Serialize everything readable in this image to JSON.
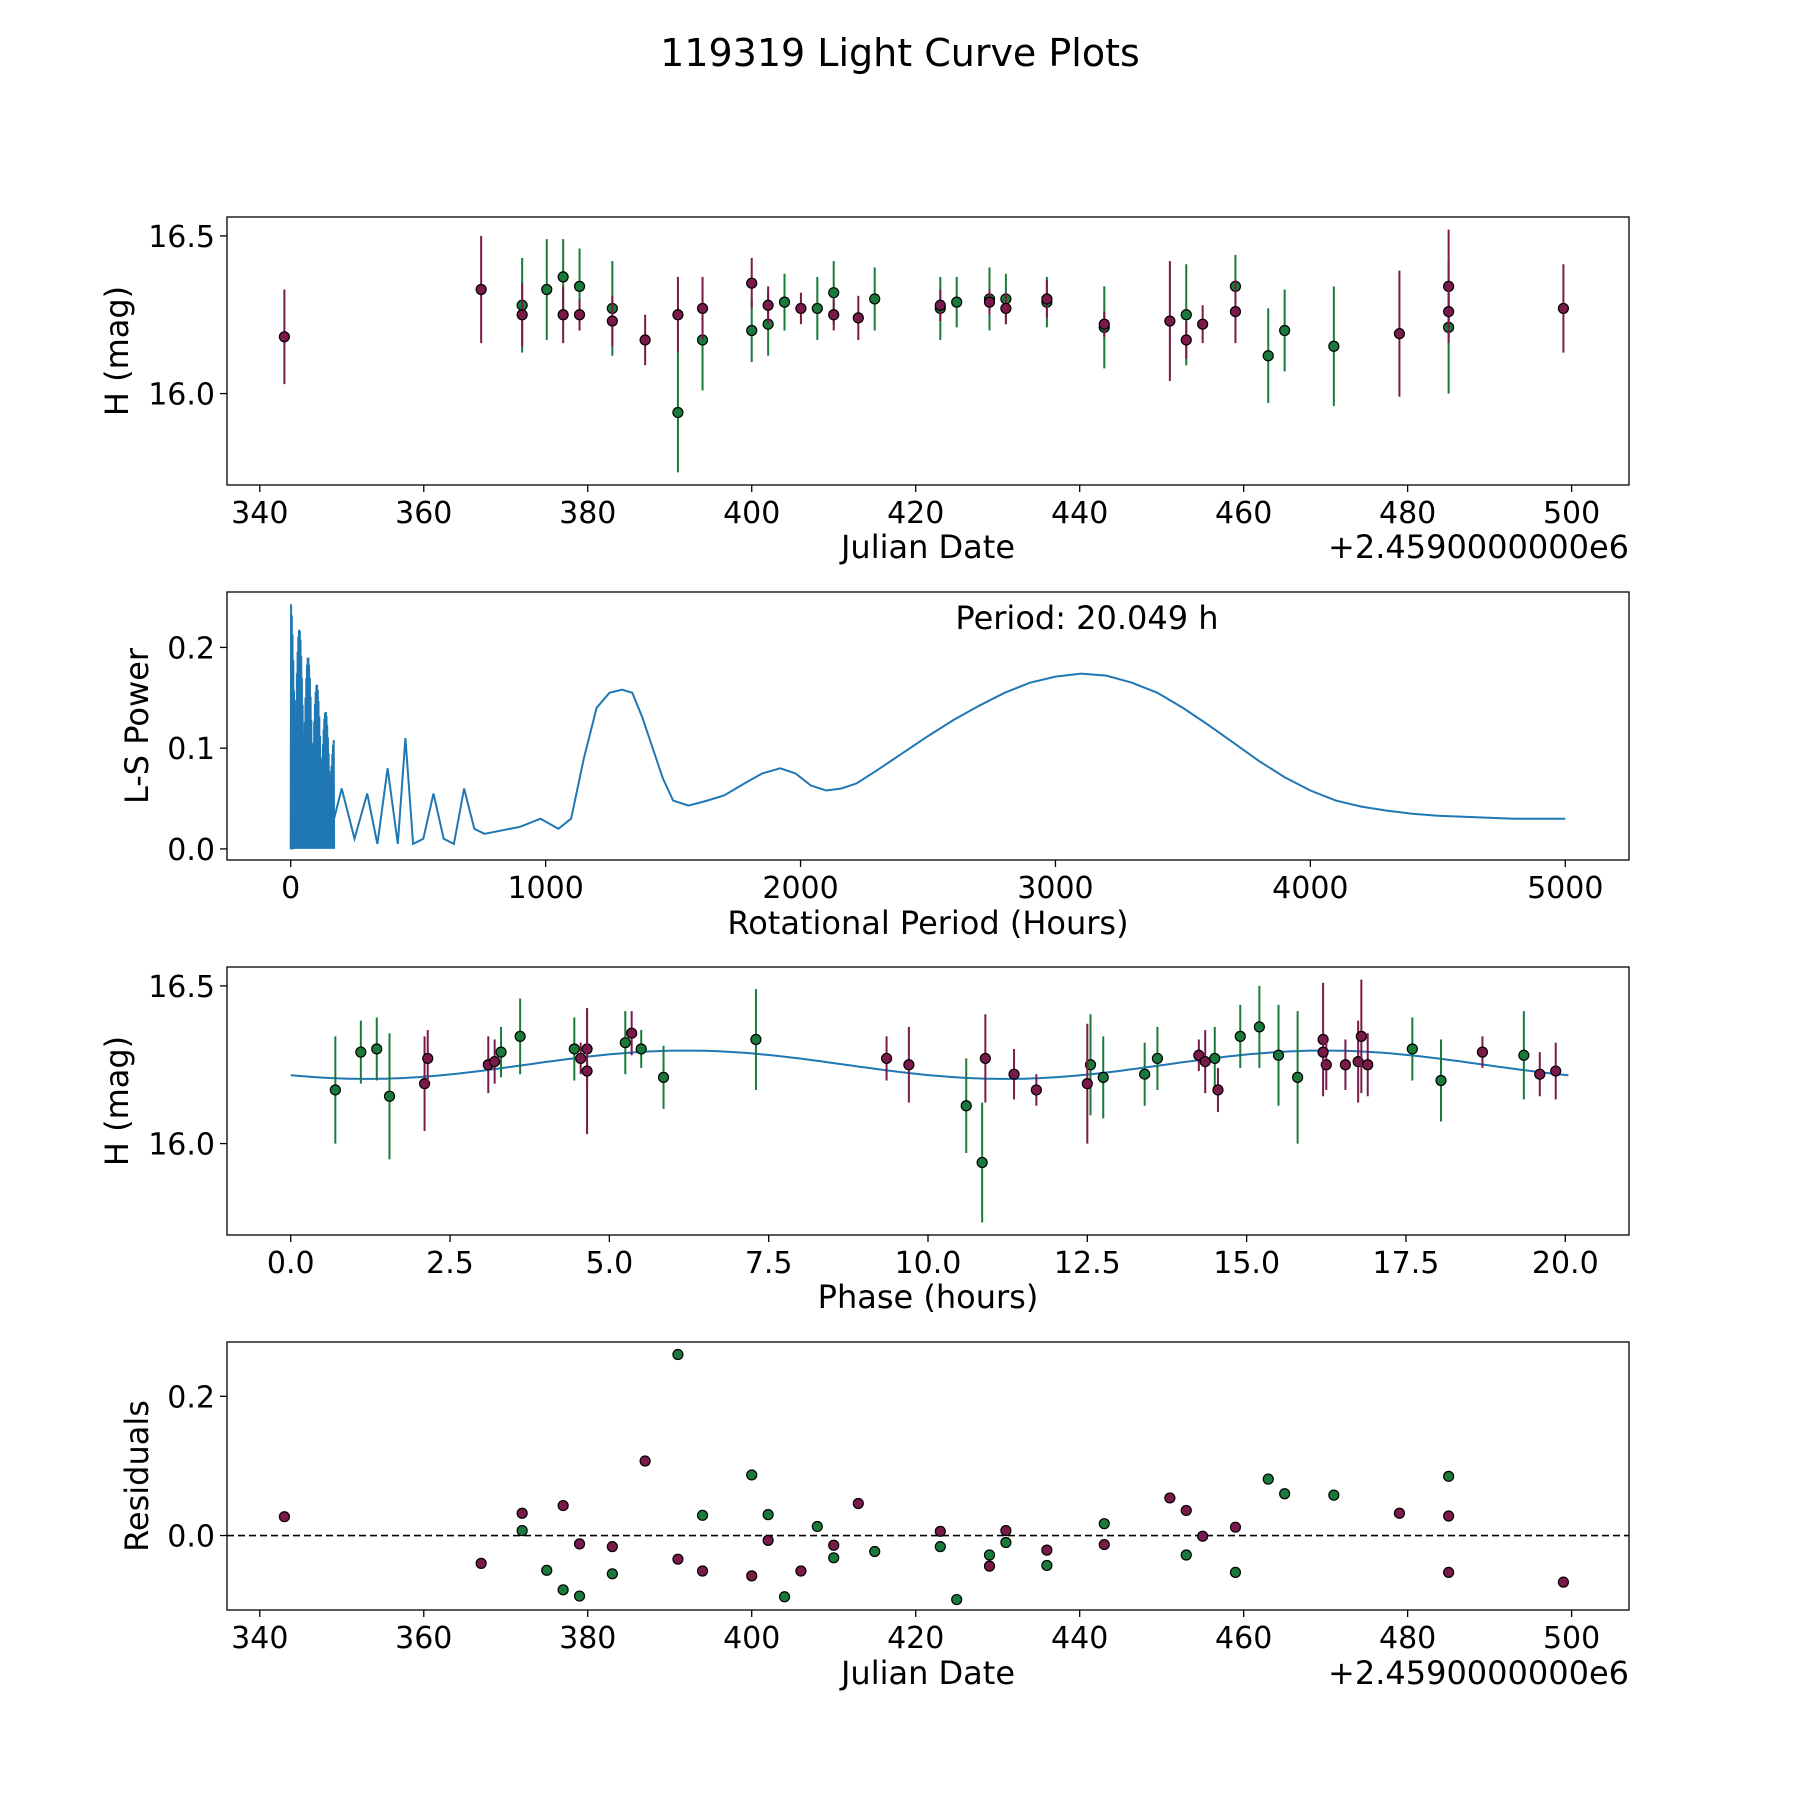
{
  "figure": {
    "title": "119319 Light Curve Plots",
    "colors": {
      "green": "#1a7a3a",
      "magenta": "#7a1a4a",
      "curve": "#1f77b4",
      "zero": "#000000"
    }
  },
  "chart_data": [
    {
      "type": "scatter",
      "name": "lightcurve",
      "title": "",
      "xlabel": "Julian Date",
      "ylabel": "H (mag)",
      "x_offset_label": "+2.4590000000e6",
      "xlim": [
        336,
        507
      ],
      "ylim": [
        15.71,
        16.56
      ],
      "xticks": [
        340,
        360,
        380,
        400,
        420,
        440,
        460,
        480,
        500
      ],
      "xtick_labels": [
        "340",
        "360",
        "380",
        "400",
        "420",
        "440",
        "460",
        "480",
        "500"
      ],
      "yticks": [
        16.0,
        16.5
      ],
      "ytick_labels": [
        "16.0",
        "16.5"
      ],
      "series": [
        {
          "name": "green",
          "points": [
            [
              372,
              16.28,
              0.15
            ],
            [
              375,
              16.33,
              0.16
            ],
            [
              377,
              16.37,
              0.12
            ],
            [
              379,
              16.34,
              0.12
            ],
            [
              383,
              16.27,
              0.15
            ],
            [
              391,
              15.94,
              0.19
            ],
            [
              394,
              16.17,
              0.16
            ],
            [
              400,
              16.2,
              0.1
            ],
            [
              402,
              16.22,
              0.1
            ],
            [
              404,
              16.29,
              0.09
            ],
            [
              408,
              16.27,
              0.1
            ],
            [
              410,
              16.32,
              0.1
            ],
            [
              415,
              16.3,
              0.1
            ],
            [
              423,
              16.27,
              0.1
            ],
            [
              425,
              16.29,
              0.08
            ],
            [
              429,
              16.3,
              0.1
            ],
            [
              431,
              16.3,
              0.08
            ],
            [
              436,
              16.29,
              0.08
            ],
            [
              443,
              16.21,
              0.13
            ],
            [
              453,
              16.25,
              0.16
            ],
            [
              459,
              16.34,
              0.1
            ],
            [
              463,
              16.12,
              0.15
            ],
            [
              465,
              16.2,
              0.13
            ],
            [
              471,
              16.15,
              0.19
            ],
            [
              485,
              16.21,
              0.21
            ]
          ]
        },
        {
          "name": "magenta",
          "points": [
            [
              343,
              16.18,
              0.15
            ],
            [
              367,
              16.33,
              0.17
            ],
            [
              372,
              16.25,
              0.1
            ],
            [
              377,
              16.25,
              0.09
            ],
            [
              379,
              16.25,
              0.05
            ],
            [
              383,
              16.23,
              0.08
            ],
            [
              387,
              16.17,
              0.08
            ],
            [
              391,
              16.25,
              0.12
            ],
            [
              394,
              16.27,
              0.1
            ],
            [
              400,
              16.35,
              0.08
            ],
            [
              402,
              16.28,
              0.06
            ],
            [
              406,
              16.27,
              0.05
            ],
            [
              410,
              16.25,
              0.05
            ],
            [
              413,
              16.24,
              0.07
            ],
            [
              423,
              16.28,
              0.05
            ],
            [
              429,
              16.29,
              0.04
            ],
            [
              431,
              16.27,
              0.05
            ],
            [
              436,
              16.3,
              0.06
            ],
            [
              443,
              16.22,
              0.04
            ],
            [
              451,
              16.23,
              0.19
            ],
            [
              453,
              16.17,
              0.06
            ],
            [
              455,
              16.22,
              0.06
            ],
            [
              459,
              16.26,
              0.1
            ],
            [
              479,
              16.19,
              0.2
            ],
            [
              485,
              16.34,
              0.18
            ],
            [
              485,
              16.26,
              0.08
            ],
            [
              499,
              16.27,
              0.14
            ]
          ]
        }
      ]
    },
    {
      "type": "line",
      "name": "periodogram",
      "title": "",
      "xlabel": "Rotational Period (Hours)",
      "ylabel": "L-S Power",
      "annotation": "Period: 20.049 h",
      "xlim": [
        -250,
        5250
      ],
      "ylim": [
        -0.011,
        0.255
      ],
      "xticks": [
        0,
        1000,
        2000,
        3000,
        4000,
        5000
      ],
      "xtick_labels": [
        "0",
        "1000",
        "2000",
        "3000",
        "4000",
        "5000"
      ],
      "yticks": [
        0.0,
        0.1,
        0.2
      ],
      "ytick_labels": [
        "0.0",
        "0.1",
        "0.2"
      ],
      "x": [
        0,
        150,
        200,
        250,
        300,
        340,
        380,
        420,
        450,
        480,
        520,
        560,
        600,
        640,
        680,
        720,
        760,
        820,
        900,
        980,
        1050,
        1100,
        1150,
        1200,
        1250,
        1300,
        1340,
        1380,
        1420,
        1460,
        1500,
        1560,
        1620,
        1700,
        1780,
        1850,
        1920,
        1980,
        2040,
        2100,
        2160,
        2220,
        2300,
        2400,
        2500,
        2600,
        2700,
        2800,
        2900,
        3000,
        3100,
        3200,
        3300,
        3400,
        3500,
        3600,
        3700,
        3800,
        3900,
        4000,
        4100,
        4200,
        4300,
        4400,
        4500,
        4600,
        4700,
        4800,
        4900,
        5000
      ],
      "values": [
        0.0,
        0.01,
        0.06,
        0.01,
        0.055,
        0.005,
        0.08,
        0.005,
        0.11,
        0.005,
        0.01,
        0.055,
        0.01,
        0.005,
        0.06,
        0.02,
        0.015,
        0.018,
        0.022,
        0.03,
        0.02,
        0.03,
        0.09,
        0.14,
        0.155,
        0.158,
        0.155,
        0.13,
        0.1,
        0.07,
        0.048,
        0.043,
        0.047,
        0.053,
        0.065,
        0.075,
        0.08,
        0.075,
        0.063,
        0.058,
        0.06,
        0.065,
        0.078,
        0.095,
        0.112,
        0.128,
        0.142,
        0.155,
        0.165,
        0.171,
        0.174,
        0.172,
        0.165,
        0.155,
        0.14,
        0.123,
        0.105,
        0.087,
        0.071,
        0.058,
        0.048,
        0.042,
        0.038,
        0.035,
        0.033,
        0.032,
        0.031,
        0.03,
        0.03,
        0.03
      ],
      "spikes_region": [
        0,
        170
      ],
      "spikes_max": 0.245
    },
    {
      "type": "scatter",
      "name": "phased",
      "title": "",
      "xlabel": "Phase (hours)",
      "ylabel": "H (mag)",
      "xlim": [
        -1.0,
        21.0
      ],
      "ylim": [
        15.71,
        16.56
      ],
      "xticks": [
        0.0,
        2.5,
        5.0,
        7.5,
        10.0,
        12.5,
        15.0,
        17.5,
        20.0
      ],
      "xtick_labels": [
        "0.0",
        "2.5",
        "5.0",
        "7.5",
        "10.0",
        "12.5",
        "15.0",
        "17.5",
        "20.0"
      ],
      "yticks": [
        16.0,
        16.5
      ],
      "ytick_labels": [
        "16.0",
        "16.5"
      ],
      "model": {
        "mean": 16.25,
        "amplitude": 0.045,
        "period": 10.0245,
        "phase_hours": 3.5
      },
      "series": [
        {
          "name": "green",
          "points": [
            [
              0.7,
              16.17,
              0.17
            ],
            [
              1.1,
              16.29,
              0.1
            ],
            [
              1.35,
              16.3,
              0.1
            ],
            [
              1.55,
              16.15,
              0.2
            ],
            [
              3.3,
              16.29,
              0.08
            ],
            [
              3.6,
              16.34,
              0.12
            ],
            [
              4.45,
              16.3,
              0.1
            ],
            [
              5.25,
              16.32,
              0.1
            ],
            [
              5.5,
              16.3,
              0.06
            ],
            [
              5.85,
              16.21,
              0.1
            ],
            [
              7.3,
              16.33,
              0.16
            ],
            [
              10.6,
              16.12,
              0.15
            ],
            [
              10.85,
              15.94,
              0.19
            ],
            [
              12.55,
              16.25,
              0.16
            ],
            [
              12.75,
              16.21,
              0.13
            ],
            [
              13.4,
              16.22,
              0.1
            ],
            [
              13.6,
              16.27,
              0.1
            ],
            [
              14.9,
              16.34,
              0.1
            ],
            [
              15.2,
              16.37,
              0.13
            ],
            [
              15.5,
              16.28,
              0.16
            ],
            [
              15.8,
              16.21,
              0.21
            ],
            [
              17.6,
              16.3,
              0.1
            ],
            [
              18.05,
              16.2,
              0.13
            ],
            [
              19.35,
              16.28,
              0.14
            ],
            [
              14.5,
              16.27,
              0.1
            ]
          ]
        },
        {
          "name": "magenta",
          "points": [
            [
              2.1,
              16.19,
              0.15
            ],
            [
              2.15,
              16.27,
              0.09
            ],
            [
              3.1,
              16.25,
              0.09
            ],
            [
              3.2,
              16.26,
              0.07
            ],
            [
              4.55,
              16.27,
              0.05
            ],
            [
              4.65,
              16.3,
              0.12
            ],
            [
              4.65,
              16.23,
              0.2
            ],
            [
              5.35,
              16.35,
              0.07
            ],
            [
              9.35,
              16.27,
              0.07
            ],
            [
              9.7,
              16.25,
              0.12
            ],
            [
              10.9,
              16.27,
              0.14
            ],
            [
              11.35,
              16.22,
              0.08
            ],
            [
              11.7,
              16.17,
              0.05
            ],
            [
              12.5,
              16.19,
              0.19
            ],
            [
              14.25,
              16.28,
              0.05
            ],
            [
              14.35,
              16.26,
              0.1
            ],
            [
              14.55,
              16.17,
              0.07
            ],
            [
              16.2,
              16.33,
              0.18
            ],
            [
              16.25,
              16.25,
              0.08
            ],
            [
              16.2,
              16.29,
              0.05
            ],
            [
              16.55,
              16.25,
              0.08
            ],
            [
              16.75,
              16.26,
              0.13
            ],
            [
              16.8,
              16.34,
              0.18
            ],
            [
              16.9,
              16.25,
              0.1
            ],
            [
              18.7,
              16.29,
              0.05
            ],
            [
              19.6,
              16.22,
              0.07
            ],
            [
              19.85,
              16.23,
              0.09
            ]
          ]
        }
      ]
    },
    {
      "type": "scatter",
      "name": "residuals",
      "title": "",
      "xlabel": "Julian Date",
      "ylabel": "Residuals",
      "x_offset_label": "+2.4590000000e6",
      "xlim": [
        336,
        507
      ],
      "ylim": [
        -0.107,
        0.278
      ],
      "xticks": [
        340,
        360,
        380,
        400,
        420,
        440,
        460,
        480,
        500
      ],
      "xtick_labels": [
        "340",
        "360",
        "380",
        "400",
        "420",
        "440",
        "460",
        "480",
        "500"
      ],
      "yticks": [
        0.0,
        0.2
      ],
      "ytick_labels": [
        "0.0",
        "0.2"
      ],
      "zero_line": 0.0,
      "series": [
        {
          "name": "green",
          "points": [
            [
              372,
              0.007
            ],
            [
              375,
              -0.05
            ],
            [
              377,
              -0.078
            ],
            [
              379,
              -0.087
            ],
            [
              383,
              -0.055
            ],
            [
              391,
              0.26
            ],
            [
              394,
              0.029
            ],
            [
              400,
              0.087
            ],
            [
              402,
              0.03
            ],
            [
              404,
              -0.088
            ],
            [
              408,
              0.013
            ],
            [
              410,
              -0.032
            ],
            [
              415,
              -0.023
            ],
            [
              423,
              -0.016
            ],
            [
              425,
              -0.092
            ],
            [
              429,
              -0.028
            ],
            [
              431,
              -0.01
            ],
            [
              436,
              -0.043
            ],
            [
              443,
              0.017
            ],
            [
              453,
              -0.028
            ],
            [
              459,
              -0.053
            ],
            [
              463,
              0.081
            ],
            [
              465,
              0.06
            ],
            [
              471,
              0.058
            ],
            [
              485,
              0.085
            ]
          ]
        },
        {
          "name": "magenta",
          "points": [
            [
              343,
              0.027
            ],
            [
              367,
              -0.04
            ],
            [
              372,
              0.032
            ],
            [
              377,
              0.043
            ],
            [
              379,
              -0.012
            ],
            [
              383,
              -0.016
            ],
            [
              387,
              0.107
            ],
            [
              391,
              -0.034
            ],
            [
              394,
              -0.051
            ],
            [
              400,
              -0.058
            ],
            [
              402,
              -0.007
            ],
            [
              406,
              -0.051
            ],
            [
              410,
              -0.014
            ],
            [
              413,
              0.046
            ],
            [
              423,
              0.006
            ],
            [
              429,
              -0.044
            ],
            [
              431,
              0.007
            ],
            [
              436,
              -0.021
            ],
            [
              443,
              -0.013
            ],
            [
              451,
              0.054
            ],
            [
              453,
              0.036
            ],
            [
              455,
              -0.001
            ],
            [
              459,
              0.012
            ],
            [
              479,
              0.032
            ],
            [
              485,
              0.028
            ],
            [
              485,
              -0.053
            ],
            [
              499,
              -0.067
            ]
          ]
        }
      ]
    }
  ]
}
